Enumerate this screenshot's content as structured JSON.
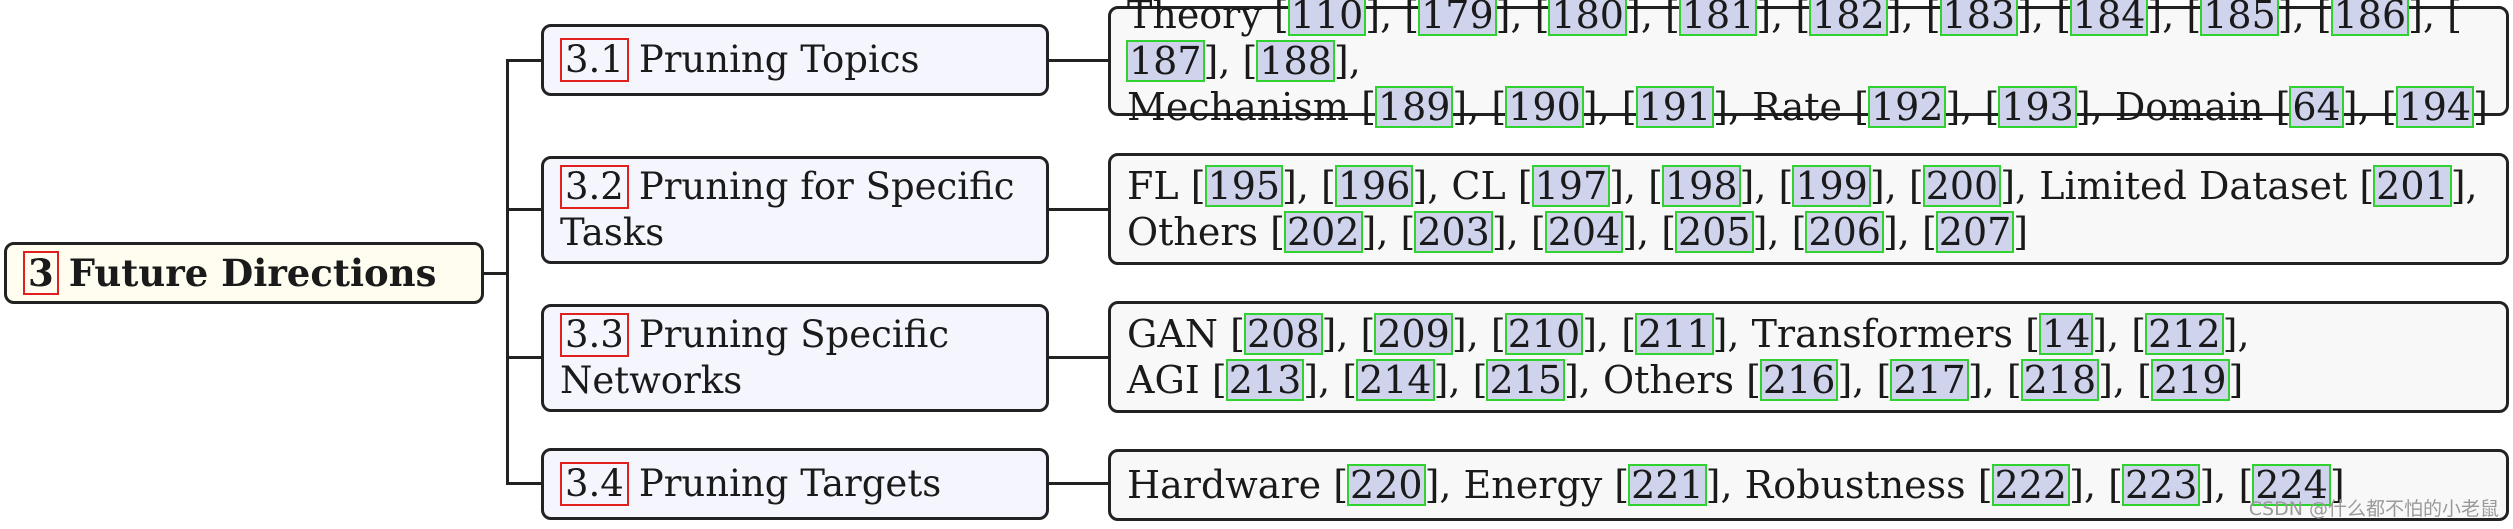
{
  "root": {
    "num": "3",
    "label": "Future Directions"
  },
  "branches": [
    {
      "num": "3.1",
      "label": "Pruning Topics",
      "leaf_lines": [
        [
          {
            "t": "Theory "
          },
          {
            "r": "110"
          },
          {
            "t": ", "
          },
          {
            "r": "179"
          },
          {
            "t": ", "
          },
          {
            "r": "180"
          },
          {
            "t": ", "
          },
          {
            "r": "181"
          },
          {
            "t": ", "
          },
          {
            "r": "182"
          },
          {
            "t": ", "
          },
          {
            "r": "183"
          },
          {
            "t": ", "
          },
          {
            "r": "184"
          },
          {
            "t": ", "
          },
          {
            "r": "185"
          },
          {
            "t": ", "
          },
          {
            "r": "186"
          },
          {
            "t": ", "
          },
          {
            "r": "187"
          },
          {
            "t": ", "
          },
          {
            "r": "188"
          },
          {
            "t": ","
          }
        ],
        [
          {
            "t": "Mechanism "
          },
          {
            "r": "189"
          },
          {
            "t": ", "
          },
          {
            "r": "190"
          },
          {
            "t": ", "
          },
          {
            "r": "191"
          },
          {
            "t": ", Rate "
          },
          {
            "r": "192"
          },
          {
            "t": ", "
          },
          {
            "r": "193"
          },
          {
            "t": ", Domain "
          },
          {
            "r": "64"
          },
          {
            "t": ", "
          },
          {
            "r": "194"
          }
        ]
      ]
    },
    {
      "num": "3.2",
      "label": "Pruning for Specific Tasks",
      "leaf_lines": [
        [
          {
            "t": "FL "
          },
          {
            "r": "195"
          },
          {
            "t": ", "
          },
          {
            "r": "196"
          },
          {
            "t": ", CL "
          },
          {
            "r": "197"
          },
          {
            "t": ", "
          },
          {
            "r": "198"
          },
          {
            "t": ", "
          },
          {
            "r": "199"
          },
          {
            "t": ", "
          },
          {
            "r": "200"
          },
          {
            "t": ", Limited Dataset "
          },
          {
            "r": "201"
          },
          {
            "t": ","
          }
        ],
        [
          {
            "t": "Others "
          },
          {
            "r": "202"
          },
          {
            "t": ", "
          },
          {
            "r": "203"
          },
          {
            "t": ", "
          },
          {
            "r": "204"
          },
          {
            "t": ", "
          },
          {
            "r": "205"
          },
          {
            "t": ", "
          },
          {
            "r": "206"
          },
          {
            "t": ", "
          },
          {
            "r": "207"
          }
        ]
      ]
    },
    {
      "num": "3.3",
      "label": "Pruning Specific Networks",
      "leaf_lines": [
        [
          {
            "t": "GAN "
          },
          {
            "r": "208"
          },
          {
            "t": ", "
          },
          {
            "r": "209"
          },
          {
            "t": ", "
          },
          {
            "r": "210"
          },
          {
            "t": ", "
          },
          {
            "r": "211"
          },
          {
            "t": ", Transformers "
          },
          {
            "r": "14"
          },
          {
            "t": ", "
          },
          {
            "r": "212"
          },
          {
            "t": ","
          }
        ],
        [
          {
            "t": "AGI "
          },
          {
            "r": "213"
          },
          {
            "t": ", "
          },
          {
            "r": "214"
          },
          {
            "t": ", "
          },
          {
            "r": "215"
          },
          {
            "t": ", Others "
          },
          {
            "r": "216"
          },
          {
            "t": ", "
          },
          {
            "r": "217"
          },
          {
            "t": ", "
          },
          {
            "r": "218"
          },
          {
            "t": ", "
          },
          {
            "r": "219"
          }
        ]
      ]
    },
    {
      "num": "3.4",
      "label": "Pruning Targets",
      "leaf_lines": [
        [
          {
            "t": "Hardware "
          },
          {
            "r": "220"
          },
          {
            "t": ", Energy "
          },
          {
            "r": "221"
          },
          {
            "t": ", Robustness "
          },
          {
            "r": "222"
          },
          {
            "t": ", "
          },
          {
            "r": "223"
          },
          {
            "t": ", "
          },
          {
            "r": "224"
          }
        ]
      ]
    }
  ],
  "watermark": "CSDN @什么都不怕的小老鼠"
}
